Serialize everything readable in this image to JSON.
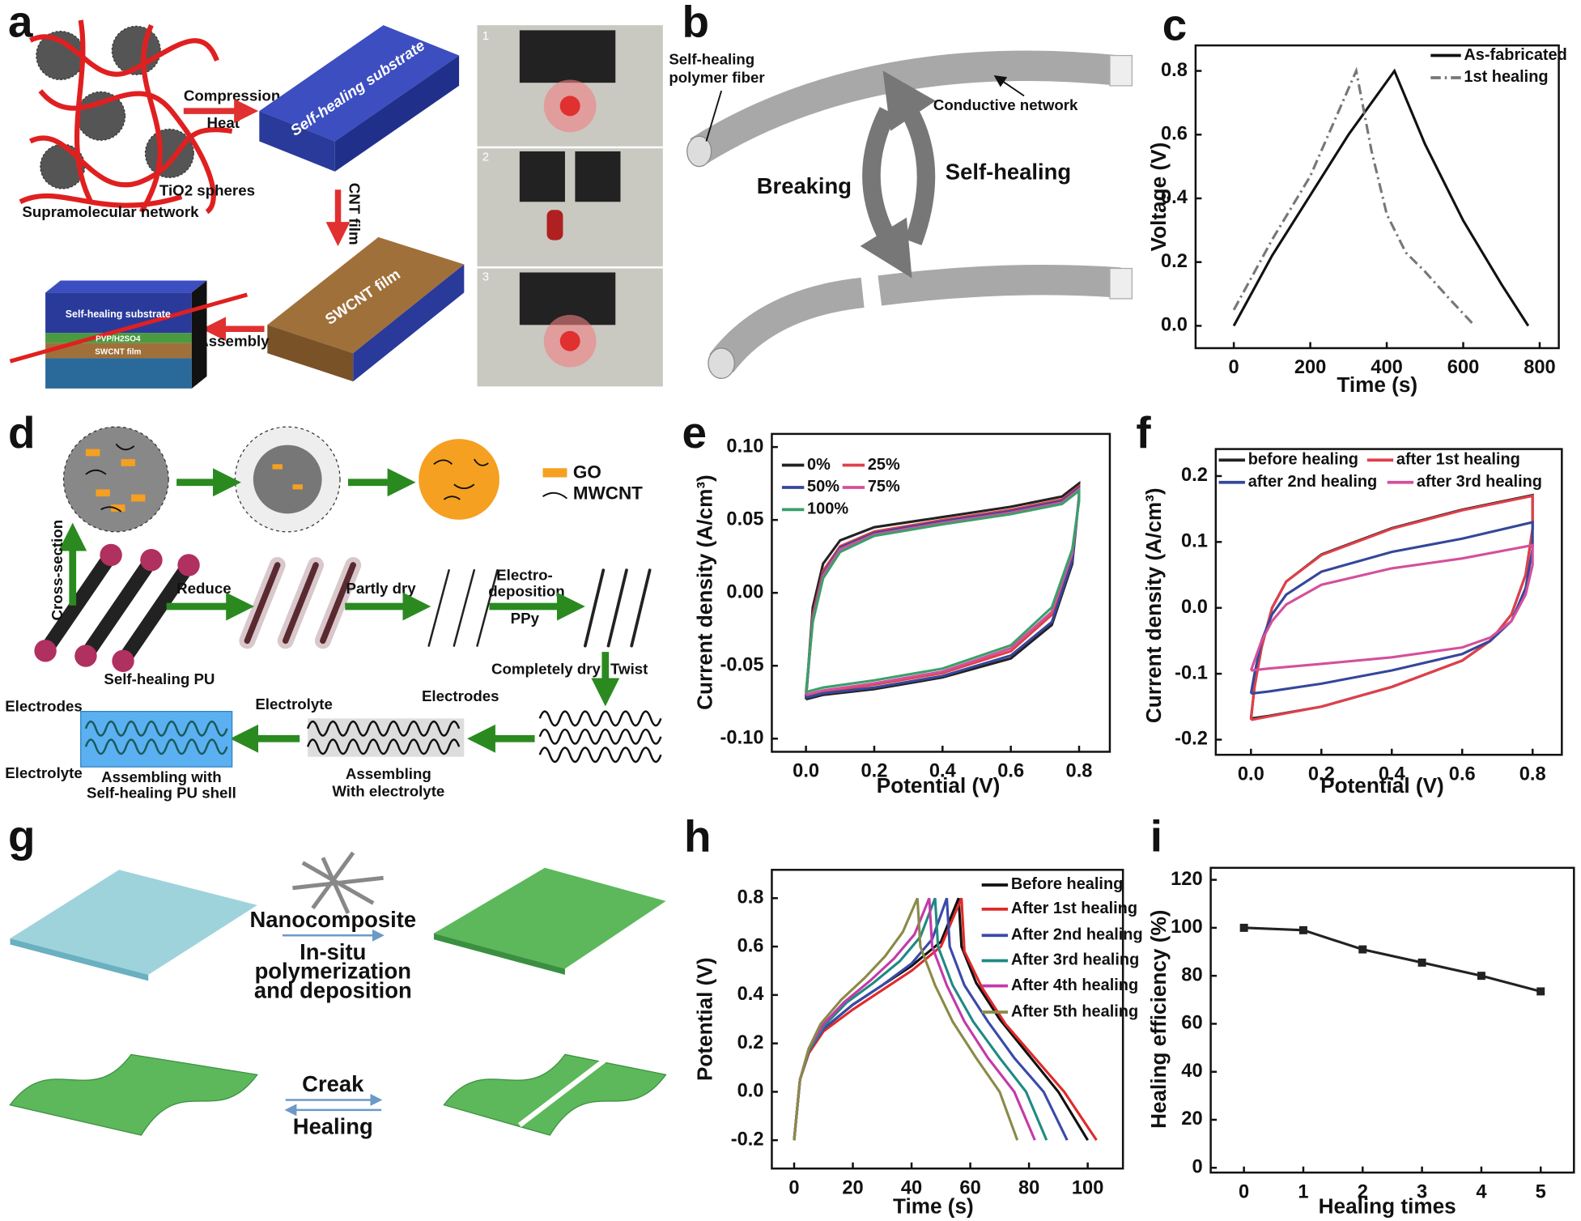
{
  "panels": {
    "letters": [
      "a",
      "b",
      "c",
      "d",
      "e",
      "f",
      "g",
      "h",
      "i"
    ],
    "a": {
      "compression": "Compression",
      "heat": "Heat",
      "substrate": "Self-healing substrate",
      "spheres": "TiO2 spheres",
      "network": "Supramolecular network",
      "cnt": "CNT film",
      "swcnt": "SWCNT film",
      "assembly": "Assembly",
      "stack_substrate": "Self-healing substrate",
      "stack_electrolyte": "PVP/H2SO4",
      "stack_film": "SWCNT film",
      "photos": [
        "1",
        "2",
        "3"
      ]
    },
    "b": {
      "fiber": [
        "Self-healing",
        "polymer fiber"
      ],
      "network": "Conductive network",
      "breaking": "Breaking",
      "healing": "Self-healing"
    },
    "d": {
      "go": "GO",
      "mwcnt": "MWCNT",
      "cross": "Cross-section",
      "reduce": "Reduce",
      "partly": "Partly dry",
      "electro": [
        "Electro-",
        "deposition"
      ],
      "ppy": "PPy",
      "completely": "Completely dry",
      "twist": "Twist",
      "pu": "Self-healing PU",
      "electrodes1": "Electrodes",
      "electrolyte1": "Electrolyte",
      "assembling1": [
        "Assembling with",
        "Self-healing PU shell"
      ],
      "electrolyte2": "Electrolyte",
      "electrodes2": "Electrodes",
      "assembling2": [
        "Assembling",
        "With electrolyte"
      ]
    },
    "g": {
      "nano": "Nanocomposite",
      "insitu": [
        "In-situ",
        "polymerization",
        "and deposition"
      ],
      "creak": "Creak",
      "healing": "Healing"
    }
  },
  "chart_data": [
    {
      "type": "line",
      "xlabel": "Time (s)",
      "ylabel": "Voltage (V)",
      "xlim": [
        -100,
        850
      ],
      "ylim": [
        -0.07,
        0.88
      ],
      "xticks": [
        0,
        200,
        400,
        600,
        800
      ],
      "yticks": [
        {
          "value": 0,
          "label": "0.0"
        },
        0.2,
        0.4,
        0.6,
        0.8
      ],
      "series": [
        {
          "name": "As-fabricated",
          "color": "#111111",
          "style": "solid",
          "x": [
            0,
            100,
            200,
            300,
            420,
            500,
            600,
            700,
            770
          ],
          "values": [
            0,
            0.22,
            0.41,
            0.6,
            0.8,
            0.57,
            0.33,
            0.13,
            0
          ]
        },
        {
          "name": "1st healing",
          "color": "#777777",
          "style": "dash-dot",
          "x": [
            0,
            100,
            200,
            320,
            360,
            400,
            450,
            500,
            560,
            630
          ],
          "values": [
            0.05,
            0.27,
            0.47,
            0.8,
            0.55,
            0.35,
            0.23,
            0.17,
            0.09,
            0
          ]
        }
      ]
    },
    {
      "type": "line",
      "xlabel": "Potential (V)",
      "ylabel": "Current density (A/cm³)",
      "xlim": [
        -0.1,
        0.89
      ],
      "ylim": [
        -0.109,
        0.109
      ],
      "xticks": [
        {
          "value": 0,
          "label": "0.0"
        },
        0.2,
        0.4,
        0.6,
        0.8
      ],
      "yticks": [
        {
          "value": -0.1,
          "label": "-0.10"
        },
        {
          "value": -0.05,
          "label": "-0.05"
        },
        {
          "value": 0,
          "label": "0.00"
        },
        {
          "value": 0.05,
          "label": "0.05"
        },
        {
          "value": 0.1,
          "label": "0.10"
        }
      ],
      "series": [
        {
          "name": "0%",
          "color": "#222222",
          "x": [
            0,
            0.02,
            0.05,
            0.1,
            0.2,
            0.4,
            0.6,
            0.75,
            0.8,
            0.8,
            0.78,
            0.72,
            0.6,
            0.4,
            0.2,
            0.05,
            0
          ],
          "values": [
            -0.073,
            -0.01,
            0.02,
            0.036,
            0.045,
            0.052,
            0.059,
            0.066,
            0.075,
            0.066,
            0.02,
            -0.022,
            -0.045,
            -0.058,
            -0.066,
            -0.07,
            -0.073
          ]
        },
        {
          "name": "25%",
          "color": "#e0404a",
          "x": [
            0,
            0.02,
            0.05,
            0.1,
            0.2,
            0.4,
            0.6,
            0.75,
            0.8,
            0.8,
            0.78,
            0.72,
            0.6,
            0.4,
            0.2,
            0.05,
            0
          ],
          "values": [
            -0.071,
            -0.015,
            0.015,
            0.032,
            0.042,
            0.05,
            0.057,
            0.064,
            0.073,
            0.065,
            0.025,
            -0.015,
            -0.04,
            -0.055,
            -0.063,
            -0.068,
            -0.071
          ]
        },
        {
          "name": "50%",
          "color": "#35479a",
          "x": [
            0,
            0.02,
            0.05,
            0.1,
            0.2,
            0.4,
            0.6,
            0.75,
            0.8,
            0.8,
            0.78,
            0.72,
            0.6,
            0.4,
            0.2,
            0.05,
            0
          ],
          "values": [
            -0.072,
            -0.017,
            0.013,
            0.031,
            0.041,
            0.049,
            0.056,
            0.063,
            0.072,
            0.066,
            0.022,
            -0.02,
            -0.043,
            -0.057,
            -0.065,
            -0.069,
            -0.072
          ]
        },
        {
          "name": "75%",
          "color": "#d4509a",
          "x": [
            0,
            0.02,
            0.05,
            0.1,
            0.2,
            0.4,
            0.6,
            0.75,
            0.8,
            0.8,
            0.78,
            0.72,
            0.6,
            0.4,
            0.2,
            0.05,
            0
          ],
          "values": [
            -0.07,
            -0.018,
            0.012,
            0.03,
            0.04,
            0.048,
            0.055,
            0.062,
            0.071,
            0.064,
            0.027,
            -0.013,
            -0.038,
            -0.054,
            -0.062,
            -0.067,
            -0.07
          ]
        },
        {
          "name": "100%",
          "color": "#3aa06a",
          "x": [
            0,
            0.02,
            0.05,
            0.1,
            0.2,
            0.4,
            0.6,
            0.75,
            0.8,
            0.8,
            0.78,
            0.72,
            0.6,
            0.4,
            0.2,
            0.05,
            0
          ],
          "values": [
            -0.068,
            -0.02,
            0.01,
            0.028,
            0.039,
            0.047,
            0.054,
            0.061,
            0.07,
            0.063,
            0.03,
            -0.01,
            -0.036,
            -0.052,
            -0.06,
            -0.065,
            -0.068
          ]
        }
      ]
    },
    {
      "type": "line",
      "xlabel": "Potential (V)",
      "ylabel": "Current density (A/cm³)",
      "xlim": [
        -0.1,
        0.883
      ],
      "ylim": [
        -0.223,
        0.241
      ],
      "xticks": [
        {
          "value": 0,
          "label": "0.0"
        },
        0.2,
        0.4,
        0.6,
        0.8
      ],
      "yticks": [
        -0.2,
        -0.1,
        {
          "value": 0,
          "label": "0.0"
        },
        0.1,
        0.2
      ],
      "series": [
        {
          "name": "before healing",
          "color": "#222222",
          "x": [
            0,
            0.01,
            0.03,
            0.06,
            0.1,
            0.2,
            0.4,
            0.6,
            0.8,
            0.8,
            0.78,
            0.74,
            0.68,
            0.6,
            0.4,
            0.2,
            0.05,
            0
          ],
          "values": [
            -0.168,
            -0.12,
            -0.06,
            0,
            0.04,
            0.081,
            0.121,
            0.149,
            0.171,
            0.12,
            0.05,
            -0.01,
            -0.05,
            -0.08,
            -0.12,
            -0.15,
            -0.164,
            -0.168
          ]
        },
        {
          "name": "after 1st healing",
          "color": "#e0404a",
          "x": [
            0,
            0.01,
            0.03,
            0.06,
            0.1,
            0.2,
            0.4,
            0.6,
            0.8,
            0.8,
            0.78,
            0.74,
            0.68,
            0.6,
            0.4,
            0.2,
            0.05,
            0
          ],
          "values": [
            -0.17,
            -0.12,
            -0.06,
            0,
            0.04,
            0.08,
            0.12,
            0.148,
            0.17,
            0.12,
            0.05,
            -0.01,
            -0.05,
            -0.08,
            -0.12,
            -0.15,
            -0.165,
            -0.17
          ]
        },
        {
          "name": "after 2nd healing",
          "color": "#35479a",
          "x": [
            0,
            0.01,
            0.03,
            0.06,
            0.1,
            0.2,
            0.4,
            0.6,
            0.8,
            0.8,
            0.78,
            0.74,
            0.68,
            0.6,
            0.4,
            0.2,
            0.05,
            0
          ],
          "values": [
            -0.13,
            -0.1,
            -0.05,
            -0.01,
            0.02,
            0.055,
            0.085,
            0.105,
            0.13,
            0.09,
            0.03,
            -0.02,
            -0.05,
            -0.07,
            -0.095,
            -0.115,
            -0.127,
            -0.13
          ]
        },
        {
          "name": "after 3rd healing",
          "color": "#d4509a",
          "x": [
            0,
            0.01,
            0.03,
            0.06,
            0.1,
            0.2,
            0.4,
            0.6,
            0.8,
            0.8,
            0.78,
            0.74,
            0.68,
            0.6,
            0.4,
            0.2,
            0.05,
            0
          ],
          "values": [
            -0.095,
            -0.08,
            -0.05,
            -0.02,
            0.005,
            0.035,
            0.06,
            0.075,
            0.095,
            0.065,
            0.02,
            -0.02,
            -0.045,
            -0.06,
            -0.075,
            -0.085,
            -0.092,
            -0.095
          ]
        }
      ]
    },
    {
      "type": "line",
      "xlabel": "Time (s)",
      "ylabel": "Potential (V)",
      "xlim": [
        -7.6,
        112
      ],
      "ylim": [
        -0.317,
        0.917
      ],
      "xticks": [
        0,
        20,
        40,
        60,
        80,
        100
      ],
      "yticks": [
        -0.2,
        {
          "value": 0,
          "label": "0.0"
        },
        0.2,
        0.4,
        0.6,
        0.8
      ],
      "series": [
        {
          "name": "Before healing",
          "color": "#111111",
          "x": [
            0,
            2,
            5,
            10,
            20,
            30,
            40,
            50,
            56,
            57,
            62,
            70,
            80,
            90,
            100
          ],
          "values": [
            -0.2,
            0.05,
            0.17,
            0.26,
            0.36,
            0.44,
            0.52,
            0.62,
            0.8,
            0.6,
            0.45,
            0.3,
            0.15,
            0,
            -0.2
          ]
        },
        {
          "name": "After 1st healing",
          "color": "#e02a2a",
          "x": [
            0,
            2,
            5,
            10,
            20,
            30,
            40,
            50,
            57,
            58,
            64,
            72,
            82,
            92,
            103
          ],
          "values": [
            -0.2,
            0.05,
            0.16,
            0.25,
            0.34,
            0.42,
            0.5,
            0.6,
            0.8,
            0.58,
            0.43,
            0.28,
            0.14,
            0,
            -0.2
          ]
        },
        {
          "name": "After 2nd healing",
          "color": "#3a4aa8",
          "x": [
            0,
            2,
            5,
            10,
            20,
            30,
            40,
            47,
            52,
            53,
            58,
            66,
            75,
            85,
            93
          ],
          "values": [
            -0.2,
            0.05,
            0.17,
            0.26,
            0.36,
            0.44,
            0.53,
            0.63,
            0.8,
            0.6,
            0.44,
            0.29,
            0.14,
            0,
            -0.2
          ]
        },
        {
          "name": "After 3rd healing",
          "color": "#1f8a84",
          "x": [
            0,
            2,
            5,
            10,
            18,
            27,
            36,
            43,
            48,
            49,
            54,
            61,
            70,
            79,
            86
          ],
          "values": [
            -0.2,
            0.05,
            0.17,
            0.27,
            0.37,
            0.45,
            0.54,
            0.64,
            0.8,
            0.6,
            0.44,
            0.29,
            0.14,
            0,
            -0.2
          ]
        },
        {
          "name": "After 4th healing",
          "color": "#c43aa8",
          "x": [
            0,
            2,
            5,
            10,
            17,
            26,
            34,
            41,
            46,
            47,
            52,
            58,
            66,
            75,
            82
          ],
          "values": [
            -0.2,
            0.05,
            0.18,
            0.28,
            0.37,
            0.46,
            0.55,
            0.65,
            0.8,
            0.6,
            0.44,
            0.29,
            0.14,
            0,
            -0.2
          ]
        },
        {
          "name": "After 5th healing",
          "color": "#8a8a4a",
          "x": [
            0,
            2,
            5,
            9,
            16,
            24,
            31,
            37,
            42,
            43,
            48,
            54,
            62,
            70,
            76
          ],
          "values": [
            -0.2,
            0.05,
            0.18,
            0.28,
            0.38,
            0.47,
            0.56,
            0.66,
            0.8,
            0.6,
            0.44,
            0.29,
            0.14,
            0,
            -0.2
          ]
        }
      ]
    },
    {
      "type": "line",
      "xlabel": "Healing times",
      "ylabel": "Healing efficiency (%)",
      "xlim": [
        -0.56,
        5.56
      ],
      "ylim": [
        -2,
        125
      ],
      "xticks": [
        0,
        1,
        2,
        3,
        4,
        5
      ],
      "yticks": [
        0,
        20,
        40,
        60,
        80,
        100,
        120
      ],
      "markers": true,
      "x": [
        0,
        1,
        2,
        3,
        4,
        5
      ],
      "series": [
        {
          "color": "#222222",
          "values": [
            100,
            99,
            91,
            85.5,
            80,
            73.5
          ]
        }
      ]
    }
  ]
}
